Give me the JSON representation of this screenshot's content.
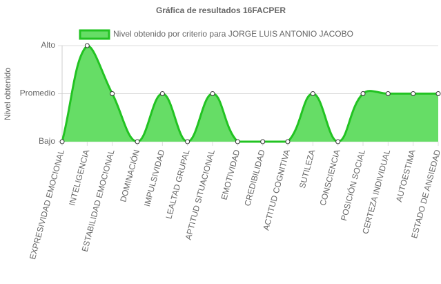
{
  "chart_data": {
    "type": "line",
    "title": "Gráfica de resultados 16FACPER",
    "y_label": "Nivel obtenido",
    "categories": [
      "EXPRESIVIDAD EMOCIONAL",
      "INTELIGENCIA",
      "ESTABILIDAD EMOCIONAL",
      "DOMINACIÓN",
      "IMPULSIVIDAD",
      "LEALTAD GRUPAL",
      "APTITUD SITUACIONAL",
      "EMOTIVIDAD",
      "CREDIBILIDAD",
      "ACTITUD COGNITIVA",
      "SUTILEZA",
      "CONSCIENCIA",
      "POSICIÓN SOCIAL",
      "CERTEZA INDIVIDUAL",
      "AUTOESTIMA",
      "ESTADO DE ANSIEDAD"
    ],
    "series": [
      {
        "name": "Nivel obtenido por criterio para JORGE LUIS ANTONIO JACOBO",
        "color": "#22c322",
        "fill": "#66dd66",
        "values": [
          0,
          2,
          1,
          0,
          1,
          0,
          1,
          0,
          0,
          0,
          1,
          0,
          1,
          1,
          1,
          1
        ]
      }
    ],
    "ylim": [
      0,
      2
    ],
    "yticks": [
      {
        "value": 0,
        "label": "Bajo"
      },
      {
        "value": 1,
        "label": "Promedio"
      },
      {
        "value": 2,
        "label": "Alto"
      }
    ],
    "grid": true,
    "filled": true,
    "legend": "top"
  }
}
